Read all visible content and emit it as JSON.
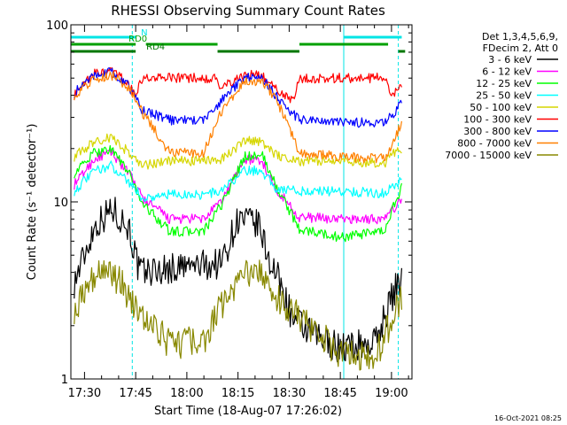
{
  "chart_data": {
    "type": "line",
    "title": "RHESSI Observing Summary Count Rates",
    "xlabel": "Start Time (18-Aug-07 17:26:02)",
    "ylabel": "Count Rate (s⁻¹ detector⁻¹)",
    "y_scale": "log",
    "ylim": [
      1,
      100
    ],
    "y_ticks": [
      {
        "value": 1,
        "label": "1"
      },
      {
        "value": 10,
        "label": "10"
      },
      {
        "value": 100,
        "label": "100"
      }
    ],
    "xlim": [
      "17:26",
      "19:06"
    ],
    "x_ticks": [
      "17:30",
      "17:45",
      "18:00",
      "18:15",
      "18:30",
      "18:45",
      "19:00"
    ],
    "legend": {
      "position": "top-right",
      "header": [
        "Det 1,3,4,5,6,9,",
        "FDecim 2, Att 0"
      ]
    },
    "timestamp": "16-Oct-2021 08:25",
    "flags": [
      {
        "label": "N",
        "color": "#00e5e5",
        "segments": [
          [
            "17:26",
            "17:45"
          ],
          [
            "18:46",
            "19:03"
          ]
        ]
      },
      {
        "label": "RD0",
        "color": "#00a000",
        "segments": [
          [
            "17:26",
            "17:45"
          ],
          [
            "17:48",
            "18:09"
          ],
          [
            "18:33",
            "18:59"
          ]
        ]
      },
      {
        "label": "RD4",
        "color": "#007700",
        "segments": [
          [
            "17:26",
            "17:45"
          ],
          [
            "18:09",
            "18:33"
          ],
          [
            "19:02",
            "19:04"
          ]
        ]
      }
    ],
    "vlines": [
      {
        "time": "17:26",
        "style": "solid"
      },
      {
        "time": "17:44",
        "style": "dashed"
      },
      {
        "time": "18:46",
        "style": "solid"
      },
      {
        "time": "19:02",
        "style": "dashed"
      }
    ],
    "series": [
      {
        "name": "3 - 6 keV",
        "color": "#000000",
        "x": [
          "17:27",
          "17:33",
          "17:38",
          "17:43",
          "17:46",
          "18:10",
          "18:15",
          "18:21",
          "18:24",
          "18:27",
          "18:31",
          "18:36",
          "18:45",
          "18:55",
          "19:01",
          "19:03"
        ],
        "y": [
          3.5,
          7.3,
          9.2,
          7.2,
          4.0,
          4.5,
          8.0,
          7.4,
          4.8,
          3.6,
          2.2,
          1.8,
          1.5,
          1.6,
          3.2,
          3.6
        ]
      },
      {
        "name": "6 - 12 keV",
        "color": "#ff00ff",
        "x": [
          "17:27",
          "17:33",
          "17:38",
          "17:43",
          "17:47",
          "17:55",
          "18:05",
          "18:10",
          "18:17",
          "18:22",
          "18:26",
          "18:33",
          "18:45",
          "18:58",
          "19:01",
          "19:03"
        ],
        "y": [
          12.5,
          17.5,
          19,
          14.5,
          10.5,
          8,
          8,
          10,
          17.5,
          17,
          12,
          8.2,
          8,
          8,
          9.3,
          10.5
        ]
      },
      {
        "name": "12 - 25 keV",
        "color": "#00ff00",
        "x": [
          "17:27",
          "17:33",
          "17:38",
          "17:43",
          "17:47",
          "17:55",
          "18:05",
          "18:10",
          "18:17",
          "18:22",
          "18:26",
          "18:33",
          "18:45",
          "18:58",
          "19:01",
          "19:03"
        ],
        "y": [
          14.5,
          19,
          20,
          14.5,
          9.8,
          6.8,
          6.8,
          9.5,
          18,
          18.5,
          12.5,
          7,
          6.3,
          6.8,
          10,
          12
        ]
      },
      {
        "name": "25 - 50 keV",
        "color": "#00ffff",
        "x": [
          "17:27",
          "17:33",
          "17:38",
          "17:43",
          "17:47",
          "17:55",
          "18:05",
          "18:10",
          "18:17",
          "18:22",
          "18:26",
          "18:33",
          "18:45",
          "18:58",
          "19:01",
          "19:03"
        ],
        "y": [
          11.5,
          15,
          16,
          13,
          10.5,
          11,
          11,
          11.5,
          15,
          15,
          12,
          11.5,
          11.5,
          11.2,
          12.5,
          13.5
        ]
      },
      {
        "name": "50 - 100 keV",
        "color": "#d6d600",
        "x": [
          "17:27",
          "17:33",
          "17:38",
          "17:43",
          "17:47",
          "17:55",
          "18:05",
          "18:10",
          "18:17",
          "18:22",
          "18:26",
          "18:33",
          "18:45",
          "18:58",
          "19:01",
          "19:03"
        ],
        "y": [
          18,
          22,
          23,
          19,
          16,
          17,
          17,
          17.5,
          22,
          22,
          18.5,
          17,
          17,
          16.5,
          19,
          20
        ]
      },
      {
        "name": "100 - 300 keV",
        "color": "#ff0000",
        "x": [
          "17:27",
          "17:33",
          "17:38",
          "17:43",
          "17:45",
          "17:47",
          "17:55",
          "18:05",
          "18:08",
          "18:10",
          "18:17",
          "18:22",
          "18:26",
          "18:31",
          "18:33",
          "18:45",
          "18:58",
          "19:00",
          "19:03"
        ],
        "y": [
          40,
          53,
          55,
          46,
          40,
          50,
          50,
          50,
          50,
          44,
          52,
          52,
          44,
          37,
          50,
          50,
          50,
          40,
          44
        ]
      },
      {
        "name": "300 - 800 keV",
        "color": "#0000ff",
        "x": [
          "17:27",
          "17:33",
          "17:38",
          "17:43",
          "17:47",
          "17:55",
          "18:05",
          "18:10",
          "18:17",
          "18:22",
          "18:26",
          "18:33",
          "18:45",
          "18:58",
          "19:01",
          "19:03"
        ],
        "y": [
          41,
          53,
          54,
          45,
          33,
          29,
          29,
          37,
          51,
          51,
          40,
          29,
          28,
          28,
          32,
          38
        ]
      },
      {
        "name": "800 - 7000 keV",
        "color": "#ff8000",
        "x": [
          "17:27",
          "17:33",
          "17:38",
          "17:43",
          "17:47",
          "17:55",
          "18:05",
          "18:10",
          "18:17",
          "18:22",
          "18:26",
          "18:33",
          "18:45",
          "18:58",
          "19:01",
          "19:03"
        ],
        "y": [
          40,
          50,
          52,
          44,
          32,
          19,
          19,
          32,
          49,
          48,
          39,
          19,
          18,
          17.5,
          23,
          28
        ]
      },
      {
        "name": "7000 - 15000 keV",
        "color": "#888800",
        "x": [
          "17:27",
          "17:33",
          "17:38",
          "17:43",
          "17:47",
          "17:55",
          "18:05",
          "18:10",
          "18:17",
          "18:22",
          "18:26",
          "18:33",
          "18:45",
          "18:55",
          "19:01",
          "19:03"
        ],
        "y": [
          2.5,
          4,
          4,
          3,
          2.2,
          1.6,
          1.6,
          2.6,
          4,
          4,
          3,
          2.2,
          1.4,
          1.3,
          2.4,
          2.8
        ]
      }
    ]
  }
}
